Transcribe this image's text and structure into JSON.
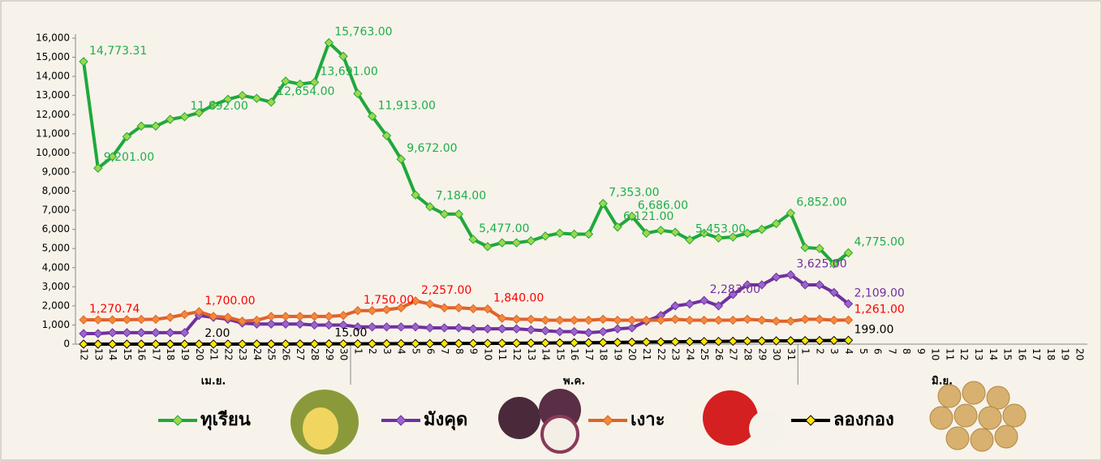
{
  "chart_data": {
    "type": "line",
    "categories": [
      "12",
      "13",
      "14",
      "15",
      "16",
      "17",
      "18",
      "19",
      "20",
      "21",
      "22",
      "23",
      "24",
      "25",
      "26",
      "27",
      "28",
      "29",
      "30",
      "1",
      "2",
      "3",
      "4",
      "5",
      "6",
      "7",
      "8",
      "9",
      "10",
      "11",
      "12",
      "13",
      "14",
      "15",
      "16",
      "17",
      "18",
      "19",
      "20",
      "21",
      "22",
      "23",
      "24",
      "25",
      "26",
      "27",
      "28",
      "29",
      "30",
      "31",
      "1",
      "2",
      "3",
      "4",
      "5",
      "6",
      "7",
      "8",
      "9",
      "10",
      "11",
      "12",
      "13",
      "14",
      "15",
      "16",
      "17",
      "18",
      "19",
      "20"
    ],
    "month_labels": [
      "เม.ย.",
      "พ.ค.",
      "มิ.ย."
    ],
    "ylim": [
      0,
      16000
    ],
    "yticks": [
      0,
      {
        "value": 1000,
        "label": "1,000"
      },
      {
        "value": 2000,
        "label": "2,000"
      },
      {
        "value": 3000,
        "label": "3,000"
      },
      {
        "value": 4000,
        "label": "4,000"
      },
      {
        "value": 5000,
        "label": "5,000"
      },
      {
        "value": 6000,
        "label": "6,000"
      },
      {
        "value": 7000,
        "label": "7,000"
      },
      {
        "value": 8000,
        "label": "8,000"
      },
      {
        "value": 9000,
        "label": "9,000"
      },
      {
        "value": 10000,
        "label": "10,000"
      },
      {
        "value": 11000,
        "label": "11,000"
      },
      {
        "value": 12000,
        "label": "12,000"
      },
      {
        "value": 13000,
        "label": "13,000"
      },
      {
        "value": 14000,
        "label": "14,000"
      },
      {
        "value": 15000,
        "label": "15,000"
      },
      {
        "value": 16000,
        "label": "16,000"
      }
    ],
    "series": [
      {
        "name": "ทุเรียน",
        "color": "#1fa83c",
        "marker_color": "#9ed84a",
        "label_color": "#1fae4a",
        "values": [
          14773.31,
          9201,
          9800,
          10850,
          11400,
          11400,
          11750,
          11892,
          12100,
          12500,
          12800,
          13000,
          12850,
          12654,
          13750,
          13600,
          13691,
          15763,
          15050,
          13100,
          11913,
          10900,
          9672,
          7800,
          7184,
          6800,
          6800,
          5477,
          5100,
          5300,
          5300,
          5400,
          5650,
          5800,
          5750,
          5750,
          7353,
          6121,
          6686,
          5800,
          5950,
          5850,
          5453,
          5800,
          5550,
          5600,
          5800,
          6000,
          6300,
          6852,
          5050,
          5000,
          4200,
          4775,
          null,
          null,
          null,
          null,
          null,
          null,
          null,
          null,
          null,
          null,
          null,
          null,
          null,
          null,
          null,
          null
        ],
        "value_labels": [
          "14,773.31",
          "9,201.00",
          null,
          null,
          null,
          null,
          null,
          "11,892.00",
          null,
          null,
          null,
          null,
          null,
          "12,654.00",
          null,
          null,
          "13,691.00",
          "15,763.00",
          null,
          null,
          "11,913.00",
          null,
          "9,672.00",
          null,
          "7,184.00",
          null,
          null,
          "5,477.00",
          null,
          null,
          null,
          null,
          null,
          null,
          null,
          null,
          "7,353.00",
          "6,121.00",
          "6,686.00",
          null,
          null,
          null,
          "5,453.00",
          null,
          null,
          null,
          null,
          null,
          null,
          "6,852.00",
          null,
          null,
          null,
          "4,775.00",
          null,
          null,
          null,
          null,
          null,
          null,
          null,
          null,
          null,
          null,
          null,
          null,
          null,
          null,
          null,
          null
        ]
      },
      {
        "name": "มังคุด",
        "color": "#7030a0",
        "marker_color": "#9966cc",
        "label_color": "#7030a0",
        "values": [
          550,
          550,
          600,
          600,
          600,
          600,
          600,
          600,
          1500,
          1400,
          1300,
          1100,
          1050,
          1050,
          1050,
          1050,
          1000,
          1000,
          1000,
          900,
          900,
          900,
          900,
          900,
          850,
          850,
          850,
          800,
          800,
          800,
          800,
          750,
          700,
          650,
          650,
          600,
          650,
          800,
          850,
          1200,
          1500,
          2000,
          2100,
          2283,
          2000,
          2600,
          3100,
          3100,
          3500,
          3625,
          3100,
          3100,
          2700,
          2109,
          null,
          null,
          null,
          null,
          null,
          null,
          null,
          null,
          null,
          null,
          null,
          null,
          null,
          null,
          null,
          null
        ],
        "value_labels": [
          null,
          null,
          null,
          null,
          null,
          null,
          null,
          null,
          null,
          null,
          null,
          null,
          null,
          null,
          null,
          null,
          null,
          null,
          null,
          null,
          null,
          null,
          null,
          null,
          null,
          null,
          null,
          null,
          null,
          null,
          null,
          null,
          null,
          null,
          null,
          null,
          null,
          null,
          null,
          null,
          null,
          null,
          null,
          "2,283.00",
          null,
          null,
          null,
          null,
          null,
          "3,625.00",
          null,
          null,
          null,
          "2,109.00",
          null,
          null,
          null,
          null,
          null,
          null,
          null,
          null,
          null,
          null,
          null,
          null,
          null,
          null,
          null,
          null
        ]
      },
      {
        "name": "เงาะ",
        "color": "#e0622a",
        "marker_color": "#f08a3c",
        "label_color": "#ff0000",
        "values": [
          1270.74,
          1270,
          1270,
          1280,
          1290,
          1300,
          1400,
          1550,
          1700,
          1450,
          1400,
          1200,
          1250,
          1450,
          1450,
          1450,
          1450,
          1450,
          1500,
          1750,
          1750,
          1800,
          1900,
          2257,
          2100,
          1900,
          1900,
          1850,
          1840,
          1350,
          1300,
          1300,
          1250,
          1250,
          1250,
          1250,
          1300,
          1250,
          1250,
          1250,
          1250,
          1300,
          1250,
          1250,
          1250,
          1250,
          1300,
          1250,
          1200,
          1200,
          1300,
          1300,
          1250,
          1261,
          null,
          null,
          null,
          null,
          null,
          null,
          null,
          null,
          null,
          null,
          null,
          null,
          null,
          null,
          null,
          null
        ],
        "value_labels": [
          "1,270.74",
          null,
          null,
          null,
          null,
          null,
          null,
          null,
          "1,700.00",
          null,
          null,
          null,
          null,
          null,
          null,
          null,
          null,
          null,
          null,
          "1,750.00",
          null,
          null,
          null,
          "2,257.00",
          null,
          null,
          null,
          null,
          "1,840.00",
          null,
          null,
          null,
          null,
          null,
          null,
          null,
          null,
          null,
          null,
          null,
          null,
          null,
          null,
          null,
          null,
          null,
          null,
          null,
          null,
          null,
          null,
          null,
          null,
          "1,261.00",
          null,
          null,
          null,
          null,
          null,
          null,
          null,
          null,
          null,
          null,
          null,
          null,
          null,
          null,
          null,
          null
        ]
      },
      {
        "name": "ลองกอง",
        "color": "#000000",
        "marker_color": "#ffe600",
        "label_color": "#000000",
        "values": [
          0,
          0,
          0,
          0,
          0,
          0,
          0,
          0,
          2,
          2,
          2,
          3,
          4,
          5,
          6,
          8,
          10,
          15,
          15,
          18,
          20,
          22,
          25,
          28,
          30,
          32,
          35,
          38,
          40,
          45,
          50,
          55,
          60,
          65,
          70,
          75,
          80,
          90,
          100,
          110,
          115,
          120,
          130,
          135,
          140,
          150,
          160,
          165,
          170,
          175,
          180,
          185,
          190,
          199,
          null,
          null,
          null,
          null,
          null,
          null,
          null,
          null,
          null,
          null,
          null,
          null,
          null,
          null,
          null,
          null
        ],
        "value_labels": [
          null,
          null,
          null,
          null,
          null,
          null,
          null,
          null,
          "2.00",
          null,
          null,
          null,
          null,
          null,
          null,
          null,
          null,
          "15.00",
          null,
          null,
          null,
          null,
          null,
          null,
          null,
          null,
          null,
          null,
          null,
          null,
          null,
          null,
          null,
          null,
          null,
          null,
          null,
          null,
          null,
          null,
          null,
          null,
          null,
          null,
          null,
          null,
          null,
          null,
          null,
          null,
          null,
          null,
          null,
          "199.00",
          null,
          null,
          null,
          null,
          null,
          null,
          null,
          null,
          null,
          null,
          null,
          null,
          null,
          null,
          null,
          null
        ]
      }
    ]
  }
}
